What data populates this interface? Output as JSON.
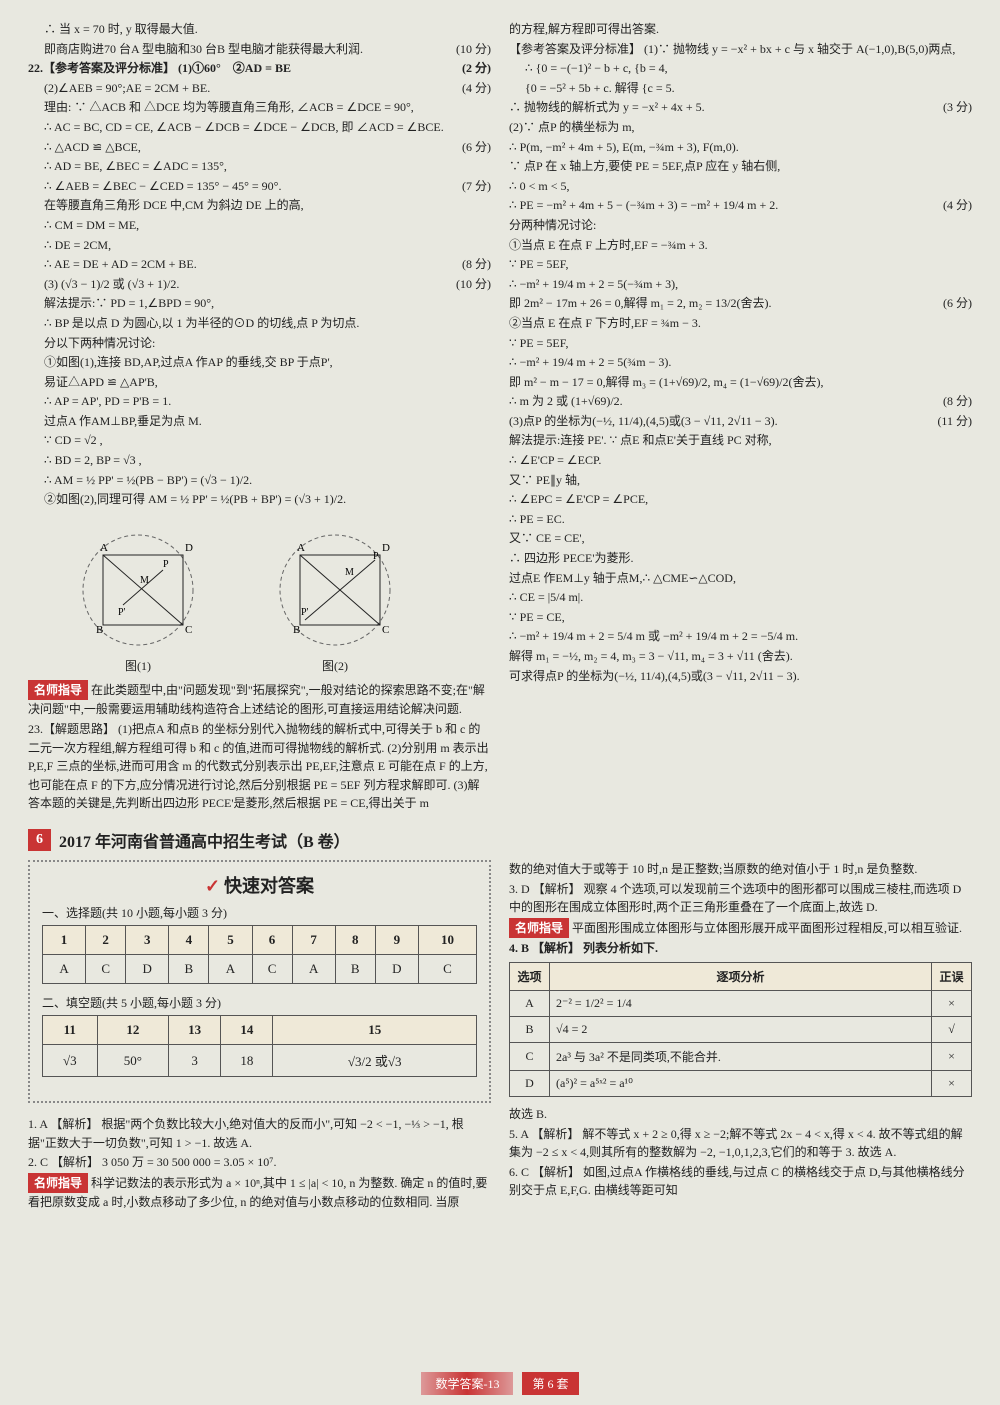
{
  "colors": {
    "accent": "#c93434",
    "bg": "#e8e8e0",
    "text": "#222",
    "tableHeader": "#efe9d8",
    "border": "#555"
  },
  "typography": {
    "bodySize": 12,
    "titleSize": 18,
    "sectionSize": 16,
    "lineHeight": 1.55
  },
  "leftCol": {
    "l1": "∴ 当 x = 70 时, y 取得最大值.",
    "l2": "即商店购进70 台A 型电脑和30 台B 型电脑才能获得最大利润.",
    "l2score": "(10 分)",
    "q22head": "22.【参考答案及评分标准】 (1)①60°　②AD = BE",
    "q22score1": "(2 分)",
    "l3": "(2)∠AEB = 90°;AE = 2CM + BE.",
    "l3score": "(4 分)",
    "l4": "理由: ∵ △ACB 和 △DCE 均为等腰直角三角形, ∠ACB = ∠DCE = 90°,",
    "l5": "∴ AC = BC, CD = CE, ∠ACB − ∠DCB = ∠DCE − ∠DCB, 即 ∠ACD = ∠BCE.",
    "l6": "∴ △ACD ≌ △BCE,",
    "l6score": "(6 分)",
    "l7": "∴ AD = BE, ∠BEC = ∠ADC = 135°,",
    "l8": "∴ ∠AEB = ∠BEC − ∠CED = 135° − 45° = 90°.",
    "l8score": "(7 分)",
    "l9": "在等腰直角三角形 DCE 中,CM 为斜边 DE 上的高,",
    "l10": "∴ CM = DM = ME,",
    "l11": "∴ DE = 2CM,",
    "l12": "∴ AE = DE + AD = 2CM + BE.",
    "l12score": "(8 分)",
    "l13": "(3) (√3 − 1)/2 或 (√3 + 1)/2.",
    "l13score": "(10 分)",
    "l14": "解法提示:∵ PD = 1,∠BPD = 90°,",
    "l15": "∴ BP 是以点 D 为圆心,以 1 为半径的⊙D 的切线,点 P 为切点.",
    "l16": "分以下两种情况讨论:",
    "l17": "①如图(1),连接 BD,AP,过点A 作AP 的垂线,交 BP 于点P',",
    "l18": "易证△APD ≌ △AP'B,",
    "l19": "∴ AP = AP', PD = P'B = 1.",
    "l20": "过点A 作AM⊥BP,垂足为点 M.",
    "l21": "∵ CD = √2 ,",
    "l22": "∴ BD = 2, BP = √3 ,",
    "l23": "∴ AM = ½ PP' = ½(PB − BP') = (√3 − 1)/2.",
    "l24": "②如图(2),同理可得 AM = ½ PP' = ½(PB + BP') = (√3 + 1)/2.",
    "diag1cap": "图(1)",
    "diag2cap": "图(2)",
    "diag1": {
      "nodes": [
        "A",
        "B",
        "C",
        "D",
        "M",
        "P",
        "P'"
      ],
      "edgeStyle": "dashed-circle"
    },
    "diag2": {
      "nodes": [
        "A",
        "B",
        "C",
        "D",
        "M",
        "P",
        "P'"
      ],
      "edgeStyle": "dashed-circle"
    },
    "teacher1": "名师指导",
    "teacher1text": " 在此类题型中,由\"问题发现\"到\"拓展探究\",一般对结论的探索思路不变;在\"解决问题\"中,一般需要运用辅助线构造符合上述结论的图形,可直接运用结论解决问题.",
    "q23head": "23.【解题思路】 (1)把点A 和点B 的坐标分别代入抛物线的解析式中,可得关于 b 和 c 的二元一次方程组,解方程组可得 b 和 c 的值,进而可得抛物线的解析式. (2)分别用 m 表示出 P,E,F 三点的坐标,进而可用含 m 的代数式分别表示出 PE,EF,注意点 E 可能在点 F 的上方,也可能在点 F 的下方,应分情况进行讨论,然后分别根据 PE = 5EF 列方程求解即可. (3)解答本题的关键是,先判断出四边形 PECE'是菱形,然后根据 PE = CE,得出关于 m"
  },
  "rightCol": {
    "r1": "的方程,解方程即可得出答案.",
    "r2": "【参考答案及评分标准】 (1)∵ 抛物线 y = −x² + bx + c 与 x 轴交于 A(−1,0),B(5,0)两点,",
    "r3": "∴ {0 = −(−1)² − b + c,  {b = 4,",
    "r3b": "   {0 = −5² + 5b + c.   解得 {c = 5.",
    "r4": "∴ 抛物线的解析式为 y = −x² + 4x + 5.",
    "r4score": "(3 分)",
    "r5": "(2)∵ 点P 的横坐标为 m,",
    "r6": "∴ P(m, −m² + 4m + 5), E(m, −¾m + 3), F(m,0).",
    "r7": "∵ 点P 在 x 轴上方,要使 PE = 5EF,点P 应在 y 轴右侧,",
    "r8": "∴ 0 < m < 5,",
    "r9": "∴ PE = −m² + 4m + 5 − (−¾m + 3) = −m² + 19/4 m + 2.",
    "r9score": "(4 分)",
    "r10": "分两种情况讨论:",
    "r11": "①当点 E 在点 F 上方时,EF = −¾m + 3.",
    "r12": "∵ PE = 5EF,",
    "r13": "∴ −m² + 19/4 m + 2 = 5(−¾m + 3),",
    "r14": "即 2m² − 17m + 26 = 0,解得 m₁ = 2, m₂ = 13/2(舍去).",
    "r14score": "(6 分)",
    "r15": "②当点 E 在点 F 下方时,EF = ¾m − 3.",
    "r16": "∵ PE = 5EF,",
    "r17": "∴ −m² + 19/4 m + 2 = 5(¾m − 3).",
    "r18": "即 m² − m − 17 = 0,解得 m₃ = (1+√69)/2, m₄ = (1−√69)/2(舍去),",
    "r19": "∴ m 为 2 或 (1+√69)/2.",
    "r19score": "(8 分)",
    "r20": "(3)点P 的坐标为(−½, 11/4),(4,5)或(3 − √11, 2√11 − 3).",
    "r20score": "(11 分)",
    "r21": "解法提示:连接 PE'. ∵ 点E 和点E'关于直线 PC 对称,",
    "r22": "∴ ∠E'CP = ∠ECP.",
    "r23": "又∵ PE∥y 轴,",
    "r24": "∴ ∠EPC = ∠E'CP = ∠PCE,",
    "r25": "∴ PE = EC.",
    "r26": "又∵ CE = CE',",
    "r27": "∴ 四边形 PECE'为菱形.",
    "r28": "过点E 作EM⊥y 轴于点M,∴ △CME∽△COD,",
    "r29": "∴ CE = |5/4 m|.",
    "r30": "∵ PE = CE,",
    "r31": "∴ −m² + 19/4 m + 2 = 5/4 m 或 −m² + 19/4 m + 2 = −5/4 m.",
    "r32": "解得 m₁ = −½, m₂ = 4, m₃ = 3 − √11, m₄ = 3 + √11 (舍去).",
    "r33": "可求得点P 的坐标为(−½, 11/4),(4,5)或(3 − √11, 2√11 − 3)."
  },
  "section": {
    "num": "6",
    "title": "2017 年河南省普通高中招生考试（B 卷）"
  },
  "answerPanel": {
    "title": "快速对答案",
    "sub1": "一、选择题(共 10 小题,每小题 3 分)",
    "table1": {
      "headers": [
        "1",
        "2",
        "3",
        "4",
        "5",
        "6",
        "7",
        "8",
        "9",
        "10"
      ],
      "row": [
        "A",
        "C",
        "D",
        "B",
        "A",
        "C",
        "A",
        "B",
        "D",
        "C"
      ]
    },
    "sub2": "二、填空题(共 5 小题,每小题 3 分)",
    "table2": {
      "headers": [
        "11",
        "12",
        "13",
        "14",
        "15"
      ],
      "row": [
        "√3",
        "50°",
        "3",
        "18",
        "√3/2 或√3"
      ]
    }
  },
  "bottomLeft": {
    "q1": "1. A 【解析】 根据\"两个负数比较大小,绝对值大的反而小\",可知 −2 < −1, −⅓ > −1, 根据\"正数大于一切负数\",可知 1 > −1. 故选 A.",
    "q2": "2. C 【解析】 3 050 万 = 30 500 000 = 3.05 × 10⁷.",
    "teacher2": "名师指导",
    "teacher2text": " 科学记数法的表示形式为 a × 10ⁿ,其中 1 ≤ |a| < 10, n 为整数. 确定 n 的值时,要看把原数变成 a 时,小数点移动了多少位, n 的绝对值与小数点移动的位数相同. 当原"
  },
  "bottomRight": {
    "pre": "数的绝对值大于或等于 10 时,n 是正整数;当原数的绝对值小于 1 时,n 是负整数.",
    "q3": "3. D 【解析】 观察 4 个选项,可以发现前三个选项中的图形都可以围成三棱柱,而选项 D 中的图形在围成立体图形时,两个正三角形重叠在了一个底面上,故选 D.",
    "teacher3": "名师指导",
    "teacher3text": " 平面图形围成立体图形与立体图形展开成平面图形过程相反,可以相互验证.",
    "q4head": "4. B 【解析】 列表分析如下.",
    "q4table": {
      "headers": [
        "选项",
        "逐项分析",
        "正误"
      ],
      "rows": [
        [
          "A",
          "2⁻² = 1/2² = 1/4",
          "×"
        ],
        [
          "B",
          "√4 = 2",
          "√"
        ],
        [
          "C",
          "2a³ 与 3a² 不是同类项,不能合并.",
          "×"
        ],
        [
          "D",
          "(a⁵)² = a⁵ˣ² = a¹⁰",
          "×"
        ]
      ]
    },
    "q4tail": "故选 B.",
    "q5": "5. A 【解析】 解不等式 x + 2 ≥ 0,得 x ≥ −2;解不等式 2x − 4 < x,得 x < 4. 故不等式组的解集为 −2 ≤ x < 4,则其所有的整数解为 −2, −1,0,1,2,3,它们的和等于 3. 故选 A.",
    "q6": "6. C 【解析】 如图,过点A 作横格线的垂线,与过点 C 的横格线交于点 D,与其他横格线分别交于点 E,F,G. 由横线等距可知"
  },
  "footer": {
    "center": "数学答案-13",
    "right": "第 6 套"
  }
}
